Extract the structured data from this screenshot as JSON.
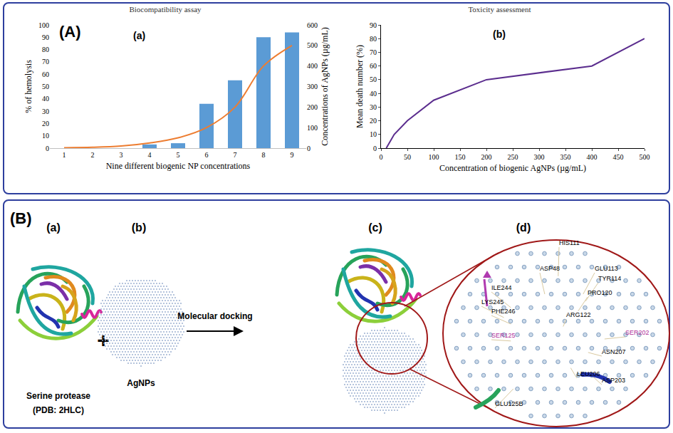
{
  "chart_data": [
    {
      "type": "bar",
      "title": "Biocompatibility assay",
      "annotations": [
        "(A)",
        "(a)"
      ],
      "x_label": "Nine different biogenic NP concentrations",
      "y_label": "% of hemolysis",
      "y2_label": "Concentrations of AgNPs (µg/mL)",
      "categories": [
        "1",
        "2",
        "3",
        "4",
        "5",
        "6",
        "7",
        "8",
        "9"
      ],
      "series": [
        {
          "type": "bar",
          "color": "#5b9bd5",
          "values": [
            0,
            0,
            0,
            3,
            4,
            36,
            55,
            90,
            94
          ]
        },
        {
          "type": "line",
          "color": "#ed7d31",
          "line_style": "smooth",
          "axis": "y2",
          "values": [
            2,
            4,
            10,
            25,
            50,
            100,
            200,
            400,
            500
          ]
        }
      ],
      "ylim": [
        0,
        100
      ],
      "yticks": [
        0,
        10,
        20,
        30,
        40,
        50,
        60,
        70,
        80,
        90,
        100
      ],
      "y2lim": [
        0,
        600
      ],
      "y2ticks": [
        0,
        100,
        200,
        300,
        400,
        500,
        600
      ],
      "grid": false
    },
    {
      "type": "line",
      "title": "Toxicity assessment",
      "annotations": [
        "(b)"
      ],
      "x_label": "Concentration of biogenic AgNPs (µg/mL)",
      "y_label": "Mean death number (%)",
      "x": [
        10,
        25,
        50,
        100,
        200,
        400,
        500
      ],
      "series": [
        {
          "color": "#5b2d8e",
          "line_style": "solid",
          "values": [
            0,
            10,
            20,
            35,
            50,
            60,
            80
          ]
        }
      ],
      "xlim": [
        0,
        500
      ],
      "xticks": [
        0,
        50,
        100,
        150,
        200,
        250,
        300,
        350,
        400,
        450,
        500
      ],
      "ylim": [
        0,
        90
      ],
      "yticks": [
        0,
        10,
        20,
        30,
        40,
        50,
        60,
        70,
        80,
        90
      ],
      "grid": false
    }
  ],
  "diagram": {
    "panel_label": "(B)",
    "subpanels": [
      {
        "label": "(a)",
        "caption": [
          "Serine protease",
          "(PDB: 2HLC)"
        ]
      },
      {
        "label": "(b)",
        "caption": [
          "AgNPs"
        ]
      },
      {
        "label": "(c)"
      },
      {
        "label": "(d)",
        "residues": [
          {
            "text": "HIS111"
          },
          {
            "text": "GLU113"
          },
          {
            "text": "TYR114"
          },
          {
            "text": "ASP48"
          },
          {
            "text": "PRO120"
          },
          {
            "text": "ILE244"
          },
          {
            "text": "LYS245"
          },
          {
            "text": "PHE246"
          },
          {
            "text": "ARG122"
          },
          {
            "text": "SER125",
            "color": "#b0309a"
          },
          {
            "text": "SER202",
            "color": "#b0309a"
          },
          {
            "text": "ASN207"
          },
          {
            "text": "LEU206"
          },
          {
            "text": "ASP203"
          },
          {
            "text": "GLU125B"
          }
        ]
      }
    ],
    "operator": "+",
    "arrow_label": "Molecular docking"
  }
}
